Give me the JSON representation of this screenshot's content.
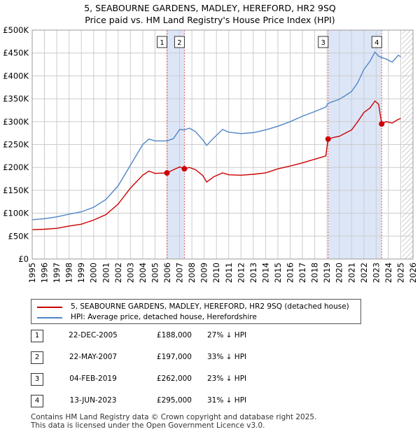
{
  "chart_data": {
    "type": "line",
    "title": "5, SEABOURNE GARDENS, MADLEY, HEREFORD, HR2 9SQ",
    "subtitle": "Price paid vs. HM Land Registry's House Price Index (HPI)",
    "xlabel": "",
    "ylabel": "",
    "xlim": [
      1995,
      2026
    ],
    "ylim": [
      0,
      500000
    ],
    "y_ticks": [
      {
        "value": 0,
        "label": "£0"
      },
      {
        "value": 50000,
        "label": "£50K"
      },
      {
        "value": 100000,
        "label": "£100K"
      },
      {
        "value": 150000,
        "label": "£150K"
      },
      {
        "value": 200000,
        "label": "£200K"
      },
      {
        "value": 250000,
        "label": "£250K"
      },
      {
        "value": 300000,
        "label": "£300K"
      },
      {
        "value": 350000,
        "label": "£350K"
      },
      {
        "value": 400000,
        "label": "£400K"
      },
      {
        "value": 450000,
        "label": "£450K"
      },
      {
        "value": 500000,
        "label": "£500K"
      }
    ],
    "x_ticks": [
      "1995",
      "1996",
      "1997",
      "1998",
      "1999",
      "2000",
      "2001",
      "2002",
      "2003",
      "2004",
      "2005",
      "2006",
      "2007",
      "2008",
      "2009",
      "2010",
      "2011",
      "2012",
      "2013",
      "2014",
      "2015",
      "2016",
      "2017",
      "2018",
      "2019",
      "2020",
      "2021",
      "2022",
      "2023",
      "2024",
      "2025",
      "2026"
    ],
    "grid": true,
    "shaded_periods": [
      [
        2005.97,
        2007.39
      ],
      [
        2019.09,
        2023.45
      ]
    ],
    "hatched_period": [
      2025.1,
      2026
    ],
    "series": [
      {
        "name": "5, SEABOURNE GARDENS, MADLEY, HEREFORD, HR2 9SQ (detached house)",
        "color": "#cc0000",
        "points": [
          [
            1995.0,
            64000
          ],
          [
            1996.0,
            65000
          ],
          [
            1997.0,
            67000
          ],
          [
            1998.0,
            72000
          ],
          [
            1999.0,
            76000
          ],
          [
            2000.0,
            85000
          ],
          [
            2001.0,
            97000
          ],
          [
            2002.0,
            120000
          ],
          [
            2003.0,
            155000
          ],
          [
            2004.0,
            183000
          ],
          [
            2004.5,
            192000
          ],
          [
            2005.0,
            187000
          ],
          [
            2005.97,
            188000
          ],
          [
            2006.5,
            195000
          ],
          [
            2007.0,
            201000
          ],
          [
            2007.39,
            197000
          ],
          [
            2007.8,
            200000
          ],
          [
            2008.3,
            195000
          ],
          [
            2008.9,
            182000
          ],
          [
            2009.2,
            168000
          ],
          [
            2009.8,
            180000
          ],
          [
            2010.5,
            188000
          ],
          [
            2011.0,
            184000
          ],
          [
            2012.0,
            183000
          ],
          [
            2013.0,
            185000
          ],
          [
            2014.0,
            188000
          ],
          [
            2015.0,
            197000
          ],
          [
            2016.0,
            203000
          ],
          [
            2017.0,
            210000
          ],
          [
            2018.0,
            218000
          ],
          [
            2018.9,
            225000
          ],
          [
            2019.09,
            262000
          ],
          [
            2019.6,
            266000
          ],
          [
            2020.0,
            268000
          ],
          [
            2020.5,
            275000
          ],
          [
            2021.0,
            282000
          ],
          [
            2021.5,
            300000
          ],
          [
            2022.0,
            320000
          ],
          [
            2022.5,
            330000
          ],
          [
            2022.9,
            345000
          ],
          [
            2023.2,
            338000
          ],
          [
            2023.45,
            295000
          ],
          [
            2023.8,
            300000
          ],
          [
            2024.3,
            297000
          ],
          [
            2024.8,
            305000
          ],
          [
            2025.0,
            307000
          ]
        ]
      },
      {
        "name": "HPI: Average price, detached house, Herefordshire",
        "color": "#4f86c6",
        "points": [
          [
            1995.0,
            86000
          ],
          [
            1996.0,
            88000
          ],
          [
            1997.0,
            92000
          ],
          [
            1998.0,
            98000
          ],
          [
            1999.0,
            103000
          ],
          [
            2000.0,
            113000
          ],
          [
            2001.0,
            130000
          ],
          [
            2002.0,
            160000
          ],
          [
            2003.0,
            205000
          ],
          [
            2004.0,
            250000
          ],
          [
            2004.5,
            262000
          ],
          [
            2005.0,
            258000
          ],
          [
            2005.97,
            258000
          ],
          [
            2006.5,
            263000
          ],
          [
            2007.0,
            283000
          ],
          [
            2007.39,
            282000
          ],
          [
            2007.8,
            286000
          ],
          [
            2008.3,
            278000
          ],
          [
            2008.9,
            260000
          ],
          [
            2009.2,
            248000
          ],
          [
            2009.8,
            265000
          ],
          [
            2010.5,
            283000
          ],
          [
            2011.0,
            277000
          ],
          [
            2012.0,
            274000
          ],
          [
            2013.0,
            276000
          ],
          [
            2014.0,
            282000
          ],
          [
            2015.0,
            290000
          ],
          [
            2016.0,
            300000
          ],
          [
            2017.0,
            312000
          ],
          [
            2018.0,
            322000
          ],
          [
            2018.9,
            332000
          ],
          [
            2019.09,
            340000
          ],
          [
            2019.6,
            345000
          ],
          [
            2020.0,
            349000
          ],
          [
            2020.5,
            357000
          ],
          [
            2021.0,
            366000
          ],
          [
            2021.5,
            385000
          ],
          [
            2022.0,
            414000
          ],
          [
            2022.5,
            432000
          ],
          [
            2022.9,
            452000
          ],
          [
            2023.2,
            443000
          ],
          [
            2023.45,
            440000
          ],
          [
            2023.8,
            437000
          ],
          [
            2024.3,
            430000
          ],
          [
            2024.8,
            445000
          ],
          [
            2025.0,
            442000
          ]
        ]
      }
    ],
    "markers": [
      {
        "label": "1",
        "x": 2005.97,
        "y": 188000
      },
      {
        "label": "2",
        "x": 2007.39,
        "y": 197000
      },
      {
        "label": "3",
        "x": 2019.09,
        "y": 262000
      },
      {
        "label": "4",
        "x": 2023.45,
        "y": 295000
      }
    ]
  },
  "legend": {
    "property": "5, SEABOURNE GARDENS, MADLEY, HEREFORD, HR2 9SQ (detached house)",
    "hpi": "HPI: Average price, detached house, Herefordshire"
  },
  "sales": [
    {
      "num": "1",
      "date": "22-DEC-2005",
      "price": "£188,000",
      "hpi": "27% ↓ HPI"
    },
    {
      "num": "2",
      "date": "22-MAY-2007",
      "price": "£197,000",
      "hpi": "33% ↓ HPI"
    },
    {
      "num": "3",
      "date": "04-FEB-2019",
      "price": "£262,000",
      "hpi": "23% ↓ HPI"
    },
    {
      "num": "4",
      "date": "13-JUN-2023",
      "price": "£295,000",
      "hpi": "31% ↓ HPI"
    }
  ],
  "footer": {
    "line1": "Contains HM Land Registry data © Crown copyright and database right 2025.",
    "line2": "This data is licensed under the Open Government Licence v3.0."
  },
  "colors": {
    "property_line": "#cc0000",
    "hpi_line": "#4f86c6",
    "shade": "#dde6f7",
    "grid": "#cccccc"
  }
}
